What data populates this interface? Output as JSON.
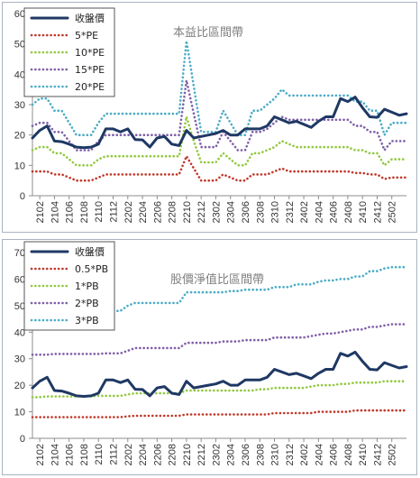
{
  "chart_data": [
    {
      "type": "line",
      "title": "本益比區間帶",
      "xlabel": "",
      "ylabel": "",
      "ylim": [
        0,
        60
      ],
      "yticks": [
        0,
        10,
        20,
        30,
        40,
        50,
        60
      ],
      "grid": false,
      "legend_position": "top-left",
      "x_tick_labels": [
        "2102",
        "2104",
        "2106",
        "2108",
        "2110",
        "2112",
        "2202",
        "2204",
        "2206",
        "2208",
        "2210",
        "2212",
        "2302",
        "2304",
        "2306",
        "2308",
        "2310",
        "2312",
        "2402",
        "2404",
        "2406",
        "2408",
        "2410",
        "2412",
        "2502"
      ],
      "series": [
        {
          "name": "收盤價",
          "color": "#1f3864",
          "style": "solid",
          "values": [
            19,
            21.5,
            23,
            18,
            17.8,
            17,
            16,
            15.8,
            16,
            17,
            22,
            22,
            21,
            22,
            18.5,
            18.4,
            16,
            19,
            19.5,
            17,
            16.5,
            21.5,
            19,
            19.5,
            20,
            20.5,
            21.5,
            20,
            20,
            22,
            22,
            22,
            23,
            26,
            25,
            24,
            24.5,
            23.5,
            22.5,
            24.5,
            26,
            26,
            32,
            31,
            32.5,
            29,
            26,
            25.8,
            28.5,
            27.5,
            26.5,
            27
          ]
        },
        {
          "name": "5*PE",
          "color": "#c0392b",
          "style": "dotted",
          "values": [
            8,
            8,
            8,
            7,
            7,
            6,
            5,
            5,
            5,
            6,
            7,
            7,
            7,
            7,
            7,
            7,
            7,
            7,
            7,
            7,
            7,
            13,
            9,
            5,
            5,
            5,
            7,
            6,
            5,
            5,
            7,
            7,
            7,
            8,
            9,
            8,
            8,
            8,
            8,
            8,
            8,
            8,
            8,
            8,
            7.5,
            7.5,
            7,
            7,
            5.5,
            6,
            6,
            6
          ]
        },
        {
          "name": "10*PE",
          "color": "#92c83e",
          "style": "dotted",
          "values": [
            15,
            16,
            16,
            14,
            14,
            12,
            10,
            10,
            10,
            12,
            13,
            13,
            13,
            13,
            13,
            13,
            13,
            13,
            13,
            13,
            13,
            26,
            18,
            11,
            11,
            11,
            14,
            12,
            10,
            10,
            14,
            14,
            15,
            16,
            18,
            17,
            16,
            16,
            16,
            16,
            16,
            16,
            16,
            16,
            15,
            15,
            14,
            14,
            10,
            12,
            12,
            12
          ]
        },
        {
          "name": "15*PE",
          "color": "#7f5fa8",
          "style": "dotted",
          "values": [
            23,
            24,
            24,
            21,
            21,
            18,
            15,
            15,
            15,
            18,
            20,
            20,
            20,
            20,
            20,
            20,
            20,
            20,
            20,
            20,
            20,
            38,
            27,
            16,
            16,
            16,
            21,
            18,
            15,
            15,
            21,
            21,
            22,
            24,
            26,
            25,
            25,
            25,
            25,
            25,
            25,
            25,
            25,
            25,
            23,
            23,
            21,
            21,
            15,
            18,
            18,
            18
          ]
        },
        {
          "name": "20*PE",
          "color": "#4bacc6",
          "style": "dotted",
          "values": [
            30,
            32,
            32,
            28,
            28,
            24,
            20,
            20,
            20,
            24,
            27,
            27,
            27,
            27,
            27,
            27,
            27,
            27,
            27,
            27,
            27,
            51,
            36,
            21,
            21,
            21,
            28,
            24,
            20,
            20,
            28,
            28,
            30,
            32,
            35,
            33,
            33,
            33,
            33,
            33,
            33,
            33,
            33,
            33,
            31,
            31,
            28,
            28,
            20,
            24,
            24,
            24
          ]
        }
      ]
    },
    {
      "type": "line",
      "title": "股價淨值比區間帶",
      "xlabel": "",
      "ylabel": "",
      "ylim": [
        0,
        70
      ],
      "yticks": [
        0,
        10,
        20,
        30,
        40,
        50,
        60,
        70
      ],
      "grid": false,
      "legend_position": "top-left",
      "x_tick_labels": [
        "2102",
        "2104",
        "2106",
        "2108",
        "2110",
        "2112",
        "2202",
        "2204",
        "2206",
        "2208",
        "2210",
        "2212",
        "2302",
        "2304",
        "2306",
        "2308",
        "2310",
        "2312",
        "2402",
        "2404",
        "2406",
        "2408",
        "2410",
        "2412",
        "2502"
      ],
      "series": [
        {
          "name": "收盤價",
          "color": "#1f3864",
          "style": "solid",
          "values": [
            19,
            21.5,
            23,
            18,
            17.8,
            17,
            16,
            15.8,
            16,
            17,
            22,
            22,
            21,
            22,
            18.5,
            18.4,
            16,
            19,
            19.5,
            17,
            16.5,
            21.5,
            19,
            19.5,
            20,
            20.5,
            21.5,
            20,
            20,
            22,
            22,
            22,
            23,
            26,
            25,
            24,
            24.5,
            23.5,
            22.5,
            24.5,
            26,
            26,
            32,
            31,
            32.5,
            29,
            26,
            25.8,
            28.5,
            27.5,
            26.5,
            27
          ]
        },
        {
          "name": "0.5*PB",
          "color": "#c0392b",
          "style": "dotted",
          "values": [
            8,
            8,
            8,
            8,
            8,
            8,
            8,
            8,
            8,
            8,
            8,
            8,
            8,
            8.3,
            8.5,
            8.5,
            8.5,
            8.5,
            8.5,
            8.5,
            8.5,
            9,
            9,
            9,
            9,
            9,
            9,
            9,
            9,
            9,
            9,
            9,
            9,
            9.5,
            9.5,
            9.5,
            9.5,
            9.5,
            9.5,
            10,
            10,
            10,
            10,
            10,
            10.5,
            10.5,
            10.5,
            10.5,
            10.5,
            10.5,
            10.5,
            10.5
          ]
        },
        {
          "name": "1*PB",
          "color": "#92c83e",
          "style": "dotted",
          "values": [
            15.5,
            15.5,
            15.8,
            15.8,
            15.8,
            15.8,
            15.8,
            15.8,
            15.8,
            16,
            16,
            16,
            16,
            16.5,
            17,
            17,
            17,
            17,
            17,
            17,
            17,
            18,
            18,
            18,
            18,
            18,
            18,
            18,
            18,
            18,
            18,
            18.5,
            18.5,
            19,
            19,
            19,
            19,
            19,
            19.5,
            20,
            20,
            20,
            20.5,
            20.5,
            21,
            21,
            21,
            21,
            21.5,
            21.5,
            21.5,
            21.5
          ]
        },
        {
          "name": "2*PB",
          "color": "#7f5fa8",
          "style": "dotted",
          "values": [
            31.5,
            31.5,
            31.5,
            31.8,
            31.8,
            31.8,
            31.8,
            31.8,
            31.8,
            31.8,
            32,
            32,
            32,
            33,
            34,
            34,
            34,
            34,
            34,
            34,
            34,
            36,
            36,
            36,
            36,
            36,
            36.5,
            36.5,
            36.5,
            37,
            37,
            37,
            37,
            38,
            38,
            38,
            38,
            38,
            38.5,
            39,
            39.5,
            39.5,
            40,
            40.5,
            41,
            41,
            42,
            42,
            42.5,
            43,
            43,
            43
          ]
        },
        {
          "name": "3*PB",
          "color": "#4bacc6",
          "style": "dotted",
          "values": [
            47,
            47.5,
            47.5,
            47.5,
            47.5,
            47.5,
            47.5,
            47.5,
            47.5,
            47.5,
            48,
            48,
            48,
            50,
            51,
            51,
            51,
            51,
            51,
            51,
            51,
            55,
            55,
            55,
            55,
            55,
            55,
            55.5,
            55.5,
            56,
            56,
            56,
            56,
            57,
            57,
            57,
            58,
            58,
            58,
            59,
            59.5,
            59.5,
            60,
            60,
            61,
            61,
            63,
            63,
            64,
            64.5,
            64.5,
            64.5
          ]
        }
      ]
    }
  ]
}
